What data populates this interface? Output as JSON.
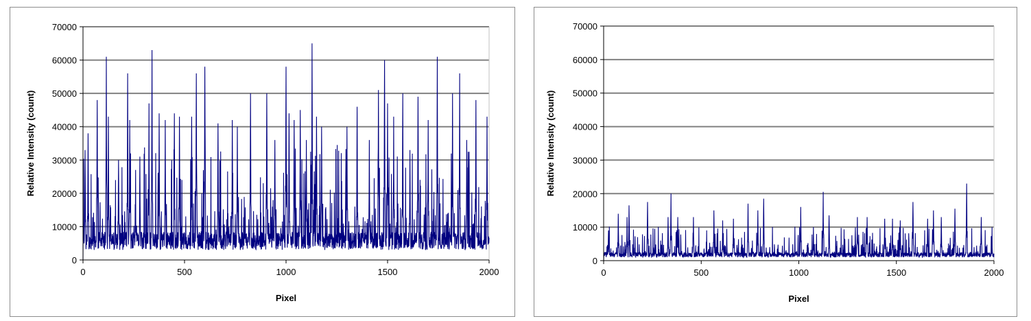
{
  "chart_data": [
    {
      "type": "line",
      "xlabel": "Pixel",
      "ylabel": "Relative Intensity (count)",
      "xlim": [
        0,
        2000
      ],
      "ylim": [
        0,
        70000
      ],
      "xticks": [
        "0",
        "500",
        "1000",
        "1500",
        "2000"
      ],
      "yticks": [
        "0",
        "10000",
        "20000",
        "30000",
        "40000",
        "50000",
        "60000",
        "70000"
      ],
      "grid": "horizontal",
      "line_color": "#000080",
      "baseline": [
        3000,
        12000
      ],
      "peaks": [
        {
          "x": 10,
          "y": 33000
        },
        {
          "x": 25,
          "y": 38000
        },
        {
          "x": 70,
          "y": 48000
        },
        {
          "x": 115,
          "y": 61000
        },
        {
          "x": 125,
          "y": 43000
        },
        {
          "x": 175,
          "y": 30000
        },
        {
          "x": 220,
          "y": 56000
        },
        {
          "x": 230,
          "y": 42000
        },
        {
          "x": 280,
          "y": 31000
        },
        {
          "x": 325,
          "y": 47000
        },
        {
          "x": 340,
          "y": 63000
        },
        {
          "x": 375,
          "y": 44000
        },
        {
          "x": 405,
          "y": 42000
        },
        {
          "x": 450,
          "y": 44000
        },
        {
          "x": 475,
          "y": 43000
        },
        {
          "x": 535,
          "y": 43000
        },
        {
          "x": 558,
          "y": 56000
        },
        {
          "x": 600,
          "y": 58000
        },
        {
          "x": 665,
          "y": 41000
        },
        {
          "x": 735,
          "y": 42000
        },
        {
          "x": 760,
          "y": 40000
        },
        {
          "x": 825,
          "y": 50000
        },
        {
          "x": 905,
          "y": 50000
        },
        {
          "x": 945,
          "y": 36000
        },
        {
          "x": 1000,
          "y": 58000
        },
        {
          "x": 1015,
          "y": 44000
        },
        {
          "x": 1040,
          "y": 42000
        },
        {
          "x": 1070,
          "y": 45000
        },
        {
          "x": 1100,
          "y": 36000
        },
        {
          "x": 1128,
          "y": 65000
        },
        {
          "x": 1150,
          "y": 43000
        },
        {
          "x": 1175,
          "y": 40000
        },
        {
          "x": 1300,
          "y": 40000
        },
        {
          "x": 1350,
          "y": 46000
        },
        {
          "x": 1410,
          "y": 36000
        },
        {
          "x": 1455,
          "y": 51000
        },
        {
          "x": 1485,
          "y": 60000
        },
        {
          "x": 1500,
          "y": 47000
        },
        {
          "x": 1530,
          "y": 43000
        },
        {
          "x": 1575,
          "y": 50000
        },
        {
          "x": 1610,
          "y": 33000
        },
        {
          "x": 1650,
          "y": 49000
        },
        {
          "x": 1700,
          "y": 42000
        },
        {
          "x": 1745,
          "y": 61000
        },
        {
          "x": 1820,
          "y": 50000
        },
        {
          "x": 1855,
          "y": 56000
        },
        {
          "x": 1890,
          "y": 36000
        },
        {
          "x": 1935,
          "y": 48000
        },
        {
          "x": 1990,
          "y": 43000
        }
      ]
    },
    {
      "type": "line",
      "xlabel": "Pixel",
      "ylabel": "Relative Intensity (count)",
      "xlim": [
        0,
        2000
      ],
      "ylim": [
        0,
        70000
      ],
      "xticks": [
        "0",
        "500",
        "1000",
        "1500",
        "2000"
      ],
      "yticks": [
        "0",
        "10000",
        "20000",
        "30000",
        "40000",
        "50000",
        "60000",
        "70000"
      ],
      "grid": "horizontal",
      "line_color": "#000080",
      "baseline": [
        1000,
        3500
      ],
      "peaks": [
        {
          "x": 25,
          "y": 9000
        },
        {
          "x": 75,
          "y": 14000
        },
        {
          "x": 120,
          "y": 13000
        },
        {
          "x": 130,
          "y": 16500
        },
        {
          "x": 225,
          "y": 17500
        },
        {
          "x": 330,
          "y": 13000
        },
        {
          "x": 345,
          "y": 20000
        },
        {
          "x": 380,
          "y": 13000
        },
        {
          "x": 460,
          "y": 13000
        },
        {
          "x": 565,
          "y": 15000
        },
        {
          "x": 610,
          "y": 12000
        },
        {
          "x": 665,
          "y": 12500
        },
        {
          "x": 740,
          "y": 17000
        },
        {
          "x": 790,
          "y": 15000
        },
        {
          "x": 820,
          "y": 18500
        },
        {
          "x": 1010,
          "y": 16000
        },
        {
          "x": 1075,
          "y": 10000
        },
        {
          "x": 1125,
          "y": 20500
        },
        {
          "x": 1155,
          "y": 13500
        },
        {
          "x": 1300,
          "y": 13000
        },
        {
          "x": 1350,
          "y": 13000
        },
        {
          "x": 1440,
          "y": 12500
        },
        {
          "x": 1480,
          "y": 12500
        },
        {
          "x": 1520,
          "y": 12000
        },
        {
          "x": 1585,
          "y": 17500
        },
        {
          "x": 1660,
          "y": 12500
        },
        {
          "x": 1690,
          "y": 15000
        },
        {
          "x": 1730,
          "y": 13000
        },
        {
          "x": 1800,
          "y": 15500
        },
        {
          "x": 1860,
          "y": 23000
        },
        {
          "x": 1935,
          "y": 13000
        },
        {
          "x": 1990,
          "y": 6000
        }
      ]
    }
  ]
}
